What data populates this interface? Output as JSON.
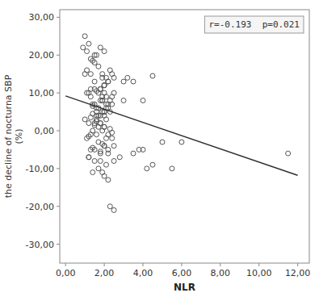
{
  "chart_data": {
    "type": "scatter",
    "xlabel": "NLR",
    "ylabel": "the decline of nocturna SBP\n(%)",
    "xlim": [
      -0.3,
      12.6
    ],
    "ylim": [
      -35,
      32
    ],
    "xticks": [
      {
        "value": 0,
        "label": "0,00"
      },
      {
        "value": 2,
        "label": "2,00"
      },
      {
        "value": 4,
        "label": "4,00"
      },
      {
        "value": 6,
        "label": "6,00"
      },
      {
        "value": 8,
        "label": "8,00"
      },
      {
        "value": 10,
        "label": "10,00"
      },
      {
        "value": 12,
        "label": "12,00"
      }
    ],
    "yticks": [
      {
        "value": -30,
        "label": "-30,00"
      },
      {
        "value": -20,
        "label": "-20,00"
      },
      {
        "value": -10,
        "label": "-10,00"
      },
      {
        "value": 0,
        "label": "0,00"
      },
      {
        "value": 10,
        "label": "10,00"
      },
      {
        "value": 20,
        "label": "20,00"
      },
      {
        "value": 30,
        "label": "30,00"
      }
    ],
    "annotation": "r=-0.193  p=0.021",
    "series": [
      {
        "type": "scatter",
        "marker": "open-circle",
        "color": "#555555",
        "x": [
          1.0,
          1.2,
          1.1,
          0.9,
          1.5,
          1.3,
          1.4,
          1.6,
          1.8,
          2.0,
          1.9,
          2.1,
          2.2,
          2.3,
          1.7,
          1.5,
          2.0,
          1.8,
          2.4,
          2.5,
          1.2,
          1.3,
          1.6,
          1.9,
          2.2,
          2.0,
          1.8,
          1.5,
          1.3,
          1.1,
          1.7,
          2.0,
          2.1,
          1.9,
          1.4,
          1.6,
          2.3,
          2.4,
          2.5,
          2.2,
          1.0,
          1.2,
          1.8,
          2.0,
          2.1,
          1.5,
          1.7,
          1.3,
          1.4,
          1.6,
          1.9,
          2.2,
          2.0,
          1.8,
          1.1,
          1.2,
          2.3,
          2.4,
          1.5,
          1.6,
          1.7,
          2.1,
          2.0,
          1.9,
          1.3,
          1.4,
          1.8,
          2.2,
          2.5,
          1.5,
          3.0,
          3.2,
          3.5,
          4.0,
          4.5,
          3.8,
          4.2,
          3.0,
          4.0,
          5.0,
          2.8,
          3.5,
          4.5,
          5.5,
          6.0,
          11.5,
          1.0,
          1.5,
          2.0,
          2.5,
          1.2,
          1.8,
          2.2,
          2.0,
          1.6,
          1.4,
          2.3,
          1.9,
          2.1,
          1.7,
          1.5,
          2.0,
          1.8,
          1.3,
          1.1,
          1.9,
          2.2,
          2.4,
          1.6,
          2.0,
          1.4,
          1.7,
          2.1,
          1.8,
          2.3,
          2.5,
          1.2,
          1.5,
          1.9,
          2.0,
          2.2,
          1.6,
          1.8,
          2.0,
          1.4,
          1.3,
          2.4,
          1.7,
          2.1,
          1.9
        ],
        "values": [
          25.0,
          23.0,
          21.0,
          22.0,
          20.0,
          19.0,
          18.5,
          20.0,
          22.0,
          21.0,
          15.0,
          14.0,
          13.0,
          16.0,
          17.0,
          18.0,
          12.0,
          11.0,
          15.0,
          14.0,
          10.0,
          11.0,
          10.5,
          9.0,
          13.0,
          12.0,
          8.0,
          7.0,
          9.0,
          10.0,
          6.0,
          5.0,
          7.0,
          8.0,
          6.5,
          4.0,
          8.0,
          9.0,
          10.0,
          7.0,
          3.0,
          2.0,
          4.0,
          5.0,
          3.0,
          2.0,
          1.0,
          3.5,
          4.5,
          2.5,
          0.0,
          -1.0,
          1.0,
          2.0,
          -2.0,
          -1.5,
          0.5,
          -0.5,
          1.5,
          -1.0,
          -3.0,
          -2.0,
          -4.0,
          -3.5,
          -5.0,
          -4.5,
          -5.5,
          -6.0,
          -4.0,
          -5.0,
          8.0,
          14.0,
          13.0,
          8.0,
          14.5,
          -5.0,
          -10.0,
          13.0,
          -5.0,
          -3.0,
          -7.0,
          -6.0,
          -9.0,
          -10.0,
          -3.0,
          -6.0,
          15.0,
          11.0,
          10.0,
          -8.0,
          -7.0,
          -6.0,
          -5.0,
          -4.0,
          6.0,
          7.0,
          5.0,
          8.0,
          9.0,
          10.0,
          13.0,
          12.0,
          11.0,
          15.0,
          16.0,
          14.0,
          6.0,
          7.0,
          5.0,
          4.0,
          -11.0,
          -10.0,
          -9.0,
          -8.0,
          -20.0,
          -21.0,
          -7.0,
          -8.0,
          -11.0,
          -12.0,
          -13.0,
          3.0,
          2.0,
          1.0,
          0.0,
          -1.0,
          -2.0,
          4.0,
          6.0,
          5.0
        ]
      },
      {
        "type": "line",
        "line_style": "solid",
        "color": "#303030",
        "x": [
          0,
          12
        ],
        "values": [
          9.2,
          -11.8
        ]
      }
    ]
  }
}
